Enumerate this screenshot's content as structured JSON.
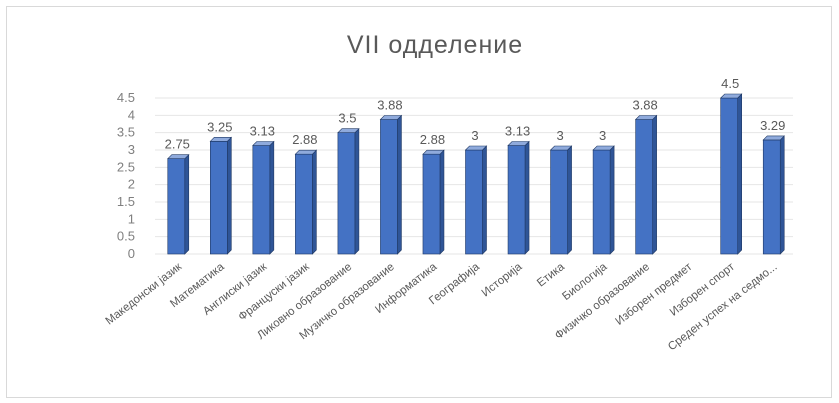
{
  "chart_data": {
    "type": "bar",
    "title": "VII одделение",
    "xlabel": "",
    "ylabel": "",
    "ylim": [
      0,
      4.5
    ],
    "yticks": [
      "0",
      "0.5",
      "1",
      "1.5",
      "2",
      "2.5",
      "3",
      "3.5",
      "4",
      "4.5"
    ],
    "grid": true,
    "legend": "none",
    "categories": [
      "Македонски јазик",
      "Математика",
      "Англиски јазик",
      "Француски јазик",
      "Ликовно образование",
      "Музичко образование",
      "Информатика",
      "Географија",
      "Историја",
      "Етика",
      "Биологија",
      "Физичко образование",
      "Изборен предмет",
      "Изборен спорт",
      "Среден успех на седмо..."
    ],
    "values": [
      2.75,
      3.25,
      3.13,
      2.88,
      3.5,
      3.88,
      2.88,
      3,
      3.13,
      3,
      3,
      3.88,
      null,
      4.5,
      3.29
    ],
    "data_labels": [
      "2.75",
      "3.25",
      "3.13",
      "2.88",
      "3.5",
      "3.88",
      "2.88",
      "3",
      "3.13",
      "3",
      "3",
      "3.88",
      "",
      "4.5",
      "3.29"
    ],
    "colors": {
      "bar_front": "#4472c4",
      "bar_side": "#2f5597",
      "bar_top": "#8faadc",
      "grid": "#e6e6e6",
      "frame": "#d9d9d9",
      "text": "#595959",
      "axis_text": "#7f7f7f"
    }
  }
}
